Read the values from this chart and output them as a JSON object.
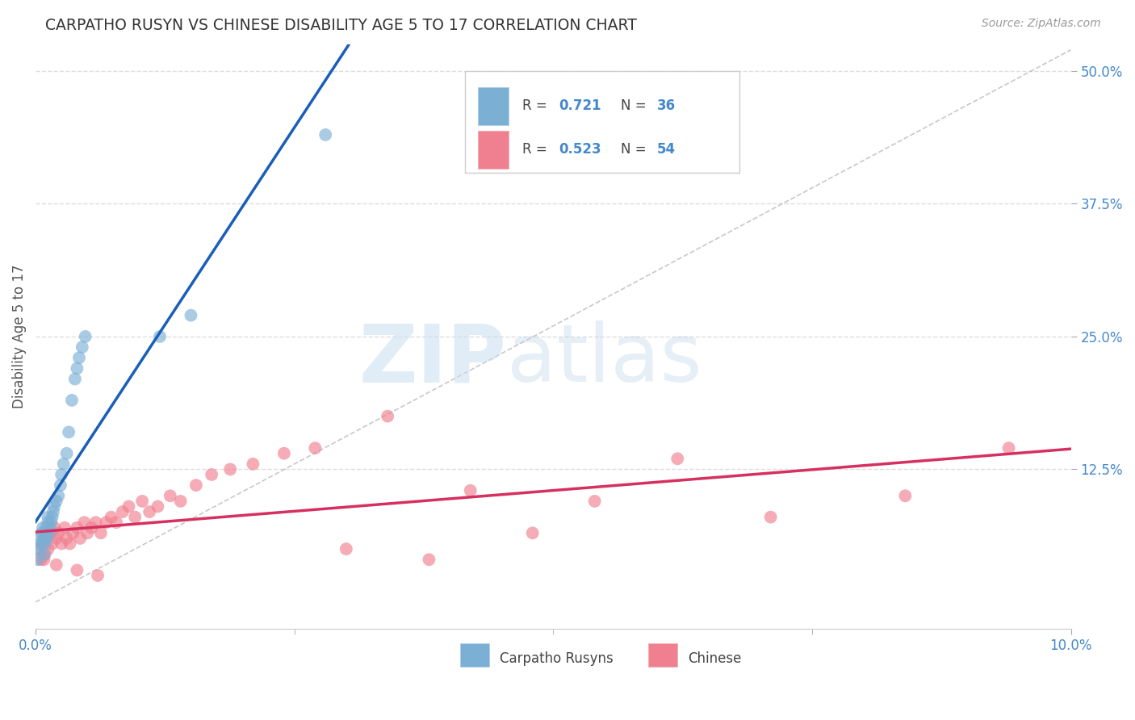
{
  "title": "CARPATHO RUSYN VS CHINESE DISABILITY AGE 5 TO 17 CORRELATION CHART",
  "source": "Source: ZipAtlas.com",
  "ylabel": "Disability Age 5 to 17",
  "x_min": 0.0,
  "x_max": 0.1,
  "y_min": -0.025,
  "y_max": 0.525,
  "y_tick_values": [
    0.125,
    0.25,
    0.375,
    0.5
  ],
  "y_tick_labels": [
    "12.5%",
    "25.0%",
    "37.5%",
    "50.0%"
  ],
  "x_tick_major": [
    0.0,
    0.1
  ],
  "x_tick_major_labels": [
    "0.0%",
    "10.0%"
  ],
  "x_tick_minor": [
    0.025,
    0.05,
    0.075
  ],
  "carpatho_color": "#7bafd4",
  "chinese_color": "#f08090",
  "trendline_carpatho_color": "#1a5eb8",
  "trendline_chinese_color": "#d63060",
  "refline_color": "#bbbbbb",
  "background_color": "#ffffff",
  "grid_color": "#dddddd",
  "legend_R_blue": "0.721",
  "legend_N_blue": "36",
  "legend_R_pink": "0.523",
  "legend_N_pink": "54",
  "carpatho_x": [
    0.0002,
    0.0003,
    0.0004,
    0.0005,
    0.0006,
    0.0007,
    0.0008,
    0.0008,
    0.0009,
    0.001,
    0.001,
    0.0011,
    0.0012,
    0.0012,
    0.0013,
    0.0014,
    0.0015,
    0.0016,
    0.0017,
    0.0018,
    0.002,
    0.0022,
    0.0024,
    0.0025,
    0.0027,
    0.003,
    0.0032,
    0.0035,
    0.0038,
    0.004,
    0.0042,
    0.0045,
    0.0048,
    0.012,
    0.015,
    0.028
  ],
  "carpatho_y": [
    0.04,
    0.05,
    0.06,
    0.055,
    0.065,
    0.07,
    0.045,
    0.06,
    0.055,
    0.065,
    0.07,
    0.06,
    0.075,
    0.08,
    0.065,
    0.07,
    0.075,
    0.08,
    0.085,
    0.09,
    0.095,
    0.1,
    0.11,
    0.12,
    0.13,
    0.14,
    0.16,
    0.19,
    0.21,
    0.22,
    0.23,
    0.24,
    0.25,
    0.25,
    0.27,
    0.44
  ],
  "chinese_x": [
    0.0003,
    0.0005,
    0.0007,
    0.0009,
    0.001,
    0.0012,
    0.0014,
    0.0016,
    0.0018,
    0.002,
    0.0022,
    0.0025,
    0.0028,
    0.003,
    0.0033,
    0.0036,
    0.004,
    0.0043,
    0.0047,
    0.005,
    0.0054,
    0.0058,
    0.0063,
    0.0068,
    0.0073,
    0.0078,
    0.0084,
    0.009,
    0.0096,
    0.0103,
    0.011,
    0.0118,
    0.013,
    0.014,
    0.0155,
    0.017,
    0.0188,
    0.021,
    0.024,
    0.027,
    0.03,
    0.034,
    0.038,
    0.042,
    0.048,
    0.054,
    0.062,
    0.071,
    0.084,
    0.094,
    0.0008,
    0.002,
    0.004,
    0.006
  ],
  "chinese_y": [
    0.05,
    0.04,
    0.055,
    0.045,
    0.06,
    0.05,
    0.065,
    0.055,
    0.07,
    0.06,
    0.065,
    0.055,
    0.07,
    0.06,
    0.055,
    0.065,
    0.07,
    0.06,
    0.075,
    0.065,
    0.07,
    0.075,
    0.065,
    0.075,
    0.08,
    0.075,
    0.085,
    0.09,
    0.08,
    0.095,
    0.085,
    0.09,
    0.1,
    0.095,
    0.11,
    0.12,
    0.125,
    0.13,
    0.14,
    0.145,
    0.05,
    0.175,
    0.04,
    0.105,
    0.065,
    0.095,
    0.135,
    0.08,
    0.1,
    0.145,
    0.04,
    0.035,
    0.03,
    0.025
  ]
}
